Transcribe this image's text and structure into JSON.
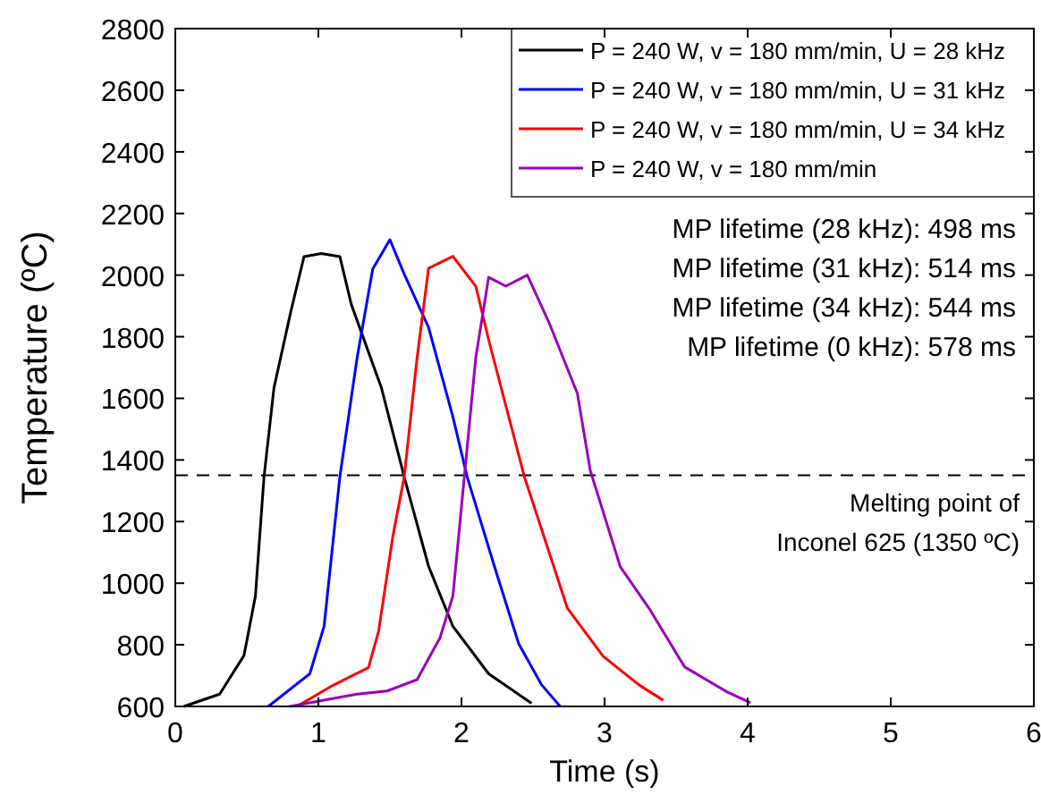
{
  "chart_data": {
    "type": "line",
    "xlabel": "Time (s)",
    "ylabel": "Temperature (ºC)",
    "xlim": [
      0,
      6
    ],
    "ylim": [
      600,
      2800
    ],
    "xticks": [
      0,
      1,
      2,
      3,
      4,
      5,
      6
    ],
    "yticks": [
      600,
      800,
      1000,
      1200,
      1400,
      1600,
      1800,
      2000,
      2200,
      2400,
      2600,
      2800
    ],
    "grid": false,
    "legend": "top right",
    "marker": "none",
    "line_style": "solid",
    "series": [
      {
        "name": "P = 240 W, v = 180 mm/min, U = 28 kHz",
        "color": "#000000",
        "x": [
          0.06,
          0.31,
          0.48,
          0.56,
          0.62,
          0.69,
          0.81,
          0.9,
          1.02,
          1.15,
          1.23,
          1.44,
          1.6,
          1.77,
          1.94,
          2.19,
          2.49
        ],
        "values": [
          600,
          640,
          765,
          958,
          1345,
          1635,
          1887,
          2060,
          2070,
          2060,
          1905,
          1635,
          1345,
          1055,
          860,
          706,
          610
        ]
      },
      {
        "name": "P = 240 W, v = 180 mm/min, U = 31 kHz",
        "color": "#0000ff",
        "x": [
          0.65,
          0.94,
          1.04,
          1.15,
          1.27,
          1.38,
          1.5,
          1.6,
          1.77,
          1.94,
          2.04,
          2.23,
          2.4,
          2.56,
          2.69
        ],
        "values": [
          600,
          706,
          860,
          1345,
          1730,
          2020,
          2115,
          2003,
          1830,
          1540,
          1345,
          1055,
          803,
          670,
          600
        ]
      },
      {
        "name": "P = 240 W, v = 180 mm/min, U = 34 kHz",
        "color": "#ff0000",
        "x": [
          0.85,
          1.1,
          1.35,
          1.42,
          1.52,
          1.6,
          1.69,
          1.77,
          1.94,
          2.1,
          2.19,
          2.44,
          2.74,
          2.99,
          3.24,
          3.41
        ],
        "values": [
          600,
          668,
          726,
          842,
          1151,
          1345,
          1732,
          2022,
          2061,
          1964,
          1790,
          1345,
          919,
          763,
          670,
          620
        ]
      },
      {
        "name": "P = 240 W, v = 180 mm/min",
        "color": "#9900bb",
        "x": [
          0.8,
          1.27,
          1.48,
          1.69,
          1.85,
          1.94,
          2.02,
          2.1,
          2.19,
          2.31,
          2.46,
          2.61,
          2.81,
          2.9,
          3.11,
          3.31,
          3.56,
          3.86,
          4.02
        ],
        "values": [
          600,
          640,
          650,
          687,
          823,
          958,
          1345,
          1732,
          1993,
          1964,
          2000,
          1848,
          1616,
          1366,
          1053,
          919,
          728,
          646,
          612
        ]
      }
    ],
    "ref_lines": [
      {
        "axis": "y",
        "value": 1350,
        "label": "Melting point of\nInconel 625 (1350 ºC)",
        "color": "#000000",
        "line_style": "dashed"
      }
    ],
    "annotations": [
      "MP lifetime (28 kHz): 498 ms",
      "MP lifetime (31 kHz): 514 ms",
      "MP lifetime (34 kHz): 544 ms",
      "MP lifetime (0 kHz): 578 ms"
    ]
  }
}
